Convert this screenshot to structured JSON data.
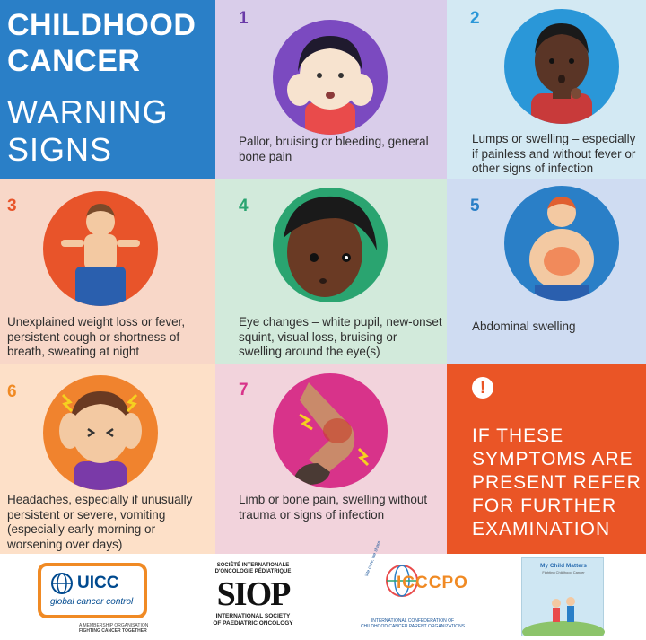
{
  "title": {
    "line1": "CHILDHOOD",
    "line2": "CANCER",
    "line3": "WARNING",
    "line4": "SIGNS"
  },
  "signs": [
    {
      "number": "1",
      "description": "Pallor, bruising or bleeding, general bone pain",
      "number_color": "#6a3aa8"
    },
    {
      "number": "2",
      "description": "Lumps or swelling – especially if painless and without fever or other signs of infection",
      "number_color": "#2a97d8"
    },
    {
      "number": "3",
      "description": "Unexplained weight loss or fever, persistent cough or shortness of breath, sweating at night",
      "number_color": "#e8542a"
    },
    {
      "number": "4",
      "description": "Eye changes – white pupil, new-onset squint, visual loss, bruising or swelling around the eye(s)",
      "number_color": "#2aa470"
    },
    {
      "number": "5",
      "description": "Abdominal swelling",
      "number_color": "#2a7fc7"
    },
    {
      "number": "6",
      "description": "Headaches, especially if unusually persistent or severe, vomiting (especially early morning or worsening over days)",
      "number_color": "#f08a24"
    },
    {
      "number": "7",
      "description": "Limb or bone pain, swelling without trauma or signs of infection",
      "number_color": "#d8338a"
    }
  ],
  "alert": {
    "icon_name": "exclamation-icon",
    "icon_glyph": "!",
    "line1": "IF THESE",
    "line2": "SYMPTOMS ARE",
    "line3": "PRESENT REFER",
    "line4": "FOR FURTHER",
    "line5": "EXAMINATION"
  },
  "footer": {
    "uicc": {
      "name": "UICC",
      "sub": "global cancer control",
      "tag1": "A MEMBERSHIP ORGANISATION",
      "tag2": "FIGHTING CANCER TOGETHER"
    },
    "siop": {
      "top1": "SOCIÉTÉ INTERNATIONALE",
      "top2": "D'ONCOLOGIE PÉDIATRIQUE",
      "name": "SIOP",
      "bottom1": "INTERNATIONAL SOCIETY",
      "bottom2": "OF PAEDIATRIC ONCOLOGY"
    },
    "icccpo": {
      "name": "ICCCPO",
      "side": "We care, we share",
      "sub1": "INTERNATIONAL CONFEDERATION OF",
      "sub2": "CHILDHOOD CANCER PARENT ORGANIZATIONS"
    },
    "mcm": {
      "title": "My Child Matters",
      "sub": "Fighting Childhood Cancer"
    }
  },
  "colors": {
    "title_bg": "#2a7fc7",
    "alert_bg": "#ea5526"
  }
}
